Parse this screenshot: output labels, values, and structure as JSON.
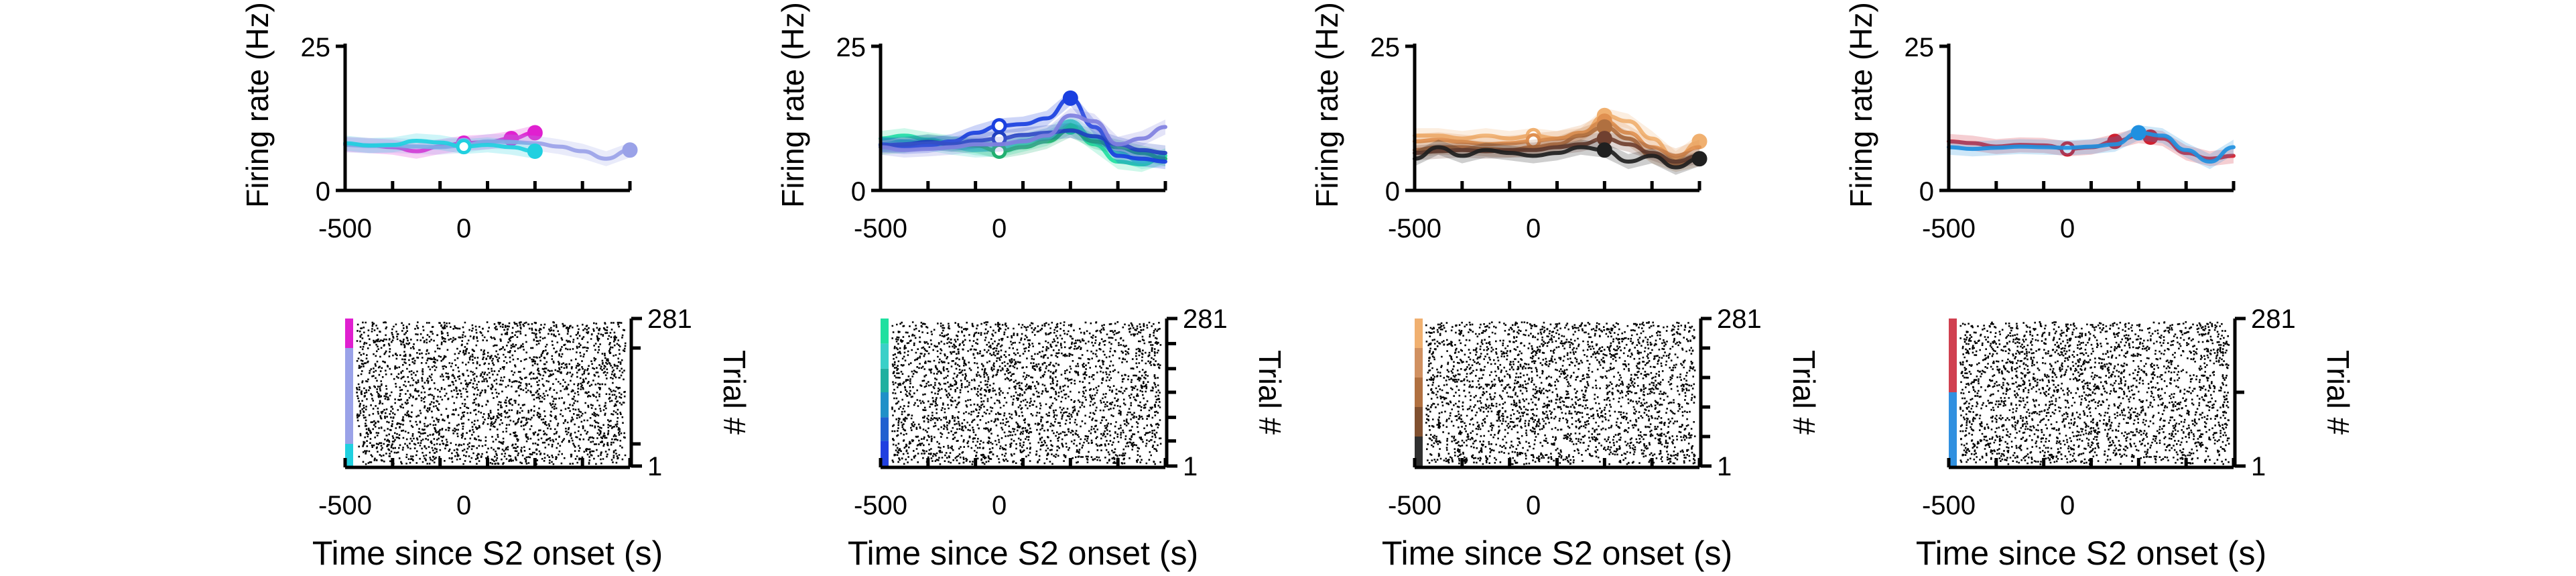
{
  "shared": {
    "psth_ylabel": "Firing rate (Hz)",
    "raster_ylabel": "Trial #",
    "xlabel": "Time since S2 onset (s)"
  },
  "chart_data": [
    {
      "type": "line",
      "panel": 1,
      "xlim": [
        -500,
        700
      ],
      "ylim": [
        0,
        25
      ],
      "xticks": [
        -500,
        0
      ],
      "yticks": [
        0,
        25
      ],
      "x": [
        -500,
        -400,
        -300,
        -200,
        -100,
        0,
        100,
        200,
        300,
        400,
        500,
        600,
        700
      ],
      "series": [
        {
          "color": "#e020d0",
          "values": [
            8,
            7.8,
            7.5,
            6.8,
            7.6,
            8.2,
            8.4,
            9.0,
            10.0,
            null,
            null,
            null,
            null
          ],
          "markers": [
            0,
            200,
            300
          ]
        },
        {
          "color": "#9aa2e8",
          "values": [
            7.9,
            7.7,
            7.8,
            7.6,
            7.5,
            7.8,
            8.5,
            8.4,
            8.2,
            7.6,
            6.8,
            5.5,
            7.0
          ],
          "markers": [
            0,
            700
          ]
        },
        {
          "color": "#20d0e0",
          "values": [
            8.2,
            7.8,
            7.9,
            8.6,
            8.3,
            7.6,
            7.9,
            7.5,
            6.8,
            null,
            null,
            null,
            null
          ],
          "markers": [
            0,
            300
          ]
        }
      ],
      "raster": {
        "trials": [
          1,
          281
        ],
        "yticks": [
          1,
          281
        ],
        "colorbar": [
          {
            "color": "#e020d0",
            "from": 0.8,
            "to": 1.0
          },
          {
            "color": "#9aa2e8",
            "from": 0.15,
            "to": 0.8
          },
          {
            "color": "#20d0e0",
            "from": 0.0,
            "to": 0.15
          }
        ],
        "boundaries": [
          0.15,
          0.8
        ]
      }
    },
    {
      "type": "line",
      "panel": 2,
      "xlim": [
        -500,
        700
      ],
      "ylim": [
        0,
        25
      ],
      "xticks": [
        -500,
        0
      ],
      "yticks": [
        0,
        25
      ],
      "x": [
        -500,
        -400,
        -300,
        -200,
        -100,
        0,
        100,
        200,
        300,
        400,
        500,
        600,
        700
      ],
      "series": [
        {
          "color": "#20e0a0",
          "values": [
            9,
            9.5,
            8.8,
            8.2,
            7.4,
            7.0,
            8.0,
            9.0,
            11.0,
            8.0,
            5.0,
            4.5,
            6.0
          ],
          "markers": [
            0,
            300
          ]
        },
        {
          "color": "#3ad0c8",
          "values": [
            8,
            8.5,
            8.2,
            7.5,
            7.0,
            7.2,
            8.6,
            9.5,
            12.0,
            9.0,
            6.5,
            5.0,
            5.5
          ],
          "markers": [
            0
          ]
        },
        {
          "color": "#20b070",
          "values": [
            7.5,
            7.8,
            8.5,
            8.0,
            7.8,
            6.8,
            7.5,
            8.5,
            10.5,
            8.5,
            7.5,
            6.5,
            5.5
          ],
          "markers": [
            0
          ]
        },
        {
          "color": "#1a40e0",
          "values": [
            8,
            7.6,
            7.8,
            8.5,
            10.0,
            11.2,
            11.5,
            12.5,
            16.0,
            11.0,
            6.0,
            5.5,
            5.0
          ],
          "markers": [
            0,
            300
          ]
        },
        {
          "color": "#2040c0",
          "values": [
            7.8,
            8.0,
            8.4,
            8.0,
            8.6,
            9.0,
            9.6,
            10.0,
            10.4,
            9.4,
            8.0,
            7.0,
            6.5
          ],
          "markers": [
            0
          ]
        },
        {
          "color": "#8080e0",
          "values": [
            7.5,
            7.0,
            7.2,
            7.5,
            8.0,
            8.0,
            8.5,
            9.5,
            13.0,
            12.0,
            8.0,
            9.0,
            11.0
          ],
          "markers": []
        }
      ],
      "raster": {
        "trials": [
          1,
          281
        ],
        "yticks": [
          1,
          281
        ],
        "colorbar": [
          {
            "color": "#20e0a0",
            "from": 0.83,
            "to": 1.0
          },
          {
            "color": "#3ad0c8",
            "from": 0.66,
            "to": 0.83
          },
          {
            "color": "#20b0a0",
            "from": 0.5,
            "to": 0.66
          },
          {
            "color": "#2090c8",
            "from": 0.33,
            "to": 0.5
          },
          {
            "color": "#2060d0",
            "from": 0.17,
            "to": 0.33
          },
          {
            "color": "#2040e0",
            "from": 0.0,
            "to": 0.17
          }
        ],
        "boundaries": [
          0.17,
          0.33,
          0.5,
          0.66,
          0.83
        ]
      }
    },
    {
      "type": "line",
      "panel": 3,
      "xlim": [
        -500,
        700
      ],
      "ylim": [
        0,
        25
      ],
      "xticks": [
        -500,
        0
      ],
      "yticks": [
        0,
        25
      ],
      "x": [
        -500,
        -400,
        -300,
        -200,
        -100,
        0,
        100,
        200,
        300,
        400,
        500,
        600,
        700
      ],
      "series": [
        {
          "color": "#f0b070",
          "values": [
            9.5,
            9.5,
            9.0,
            9.5,
            9.0,
            9.5,
            9.0,
            9.5,
            13.0,
            12.0,
            9.0,
            5.5,
            8.5
          ],
          "markers": [
            0,
            300,
            700
          ]
        },
        {
          "color": "#e09050",
          "values": [
            8.5,
            8.8,
            8.4,
            8.0,
            8.2,
            8.6,
            9.0,
            10.0,
            12.0,
            10.0,
            7.5,
            6.0,
            7.5
          ],
          "markers": [
            0,
            300
          ]
        },
        {
          "color": "#b07040",
          "values": [
            7.0,
            7.5,
            7.5,
            7.2,
            7.0,
            7.5,
            8.0,
            9.5,
            11.0,
            9.0,
            6.0,
            4.5,
            5.5
          ],
          "markers": [
            300
          ]
        },
        {
          "color": "#704030",
          "values": [
            6.5,
            6.8,
            7.0,
            6.8,
            7.0,
            7.0,
            7.5,
            8.0,
            9.0,
            8.0,
            6.5,
            5.0,
            6.0
          ],
          "markers": [
            300
          ]
        },
        {
          "color": "#202020",
          "values": [
            5.5,
            7.5,
            6.0,
            7.0,
            6.5,
            6.0,
            6.5,
            7.5,
            7.0,
            5.0,
            6.0,
            4.0,
            5.5
          ],
          "markers": [
            300,
            700
          ]
        }
      ],
      "raster": {
        "trials": [
          1,
          281
        ],
        "yticks": [
          1,
          281
        ],
        "colorbar": [
          {
            "color": "#f0b070",
            "from": 0.8,
            "to": 1.0
          },
          {
            "color": "#d09060",
            "from": 0.6,
            "to": 0.8
          },
          {
            "color": "#b07040",
            "from": 0.4,
            "to": 0.6
          },
          {
            "color": "#805030",
            "from": 0.2,
            "to": 0.4
          },
          {
            "color": "#303030",
            "from": 0.0,
            "to": 0.2
          }
        ],
        "boundaries": [
          0.2,
          0.4,
          0.6,
          0.8
        ]
      }
    },
    {
      "type": "line",
      "panel": 4,
      "xlim": [
        -500,
        700
      ],
      "ylim": [
        0,
        25
      ],
      "xticks": [
        -500,
        0
      ],
      "yticks": [
        0,
        25
      ],
      "x": [
        -500,
        -400,
        -300,
        -200,
        -100,
        0,
        100,
        200,
        300,
        400,
        500,
        600,
        700
      ],
      "series": [
        {
          "color": "#d02030",
          "values": [
            8.5,
            8.2,
            7.6,
            7.9,
            7.8,
            7.2,
            7.5,
            8.5,
            9.5,
            9.0,
            6.5,
            5.5,
            6.0
          ],
          "markers": [
            0,
            200,
            350
          ]
        },
        {
          "color": "#2090e0",
          "values": [
            7.5,
            7.2,
            7.4,
            7.6,
            7.5,
            7.4,
            7.6,
            8.0,
            10.0,
            9.5,
            7.0,
            5.0,
            7.5
          ],
          "markers": [
            300
          ]
        }
      ],
      "raster": {
        "trials": [
          1,
          281
        ],
        "yticks": [
          1,
          281
        ],
        "colorbar": [
          {
            "color": "#d04050",
            "from": 0.5,
            "to": 1.0
          },
          {
            "color": "#3090e0",
            "from": 0.0,
            "to": 0.5
          }
        ],
        "boundaries": [
          0.5
        ]
      }
    }
  ]
}
